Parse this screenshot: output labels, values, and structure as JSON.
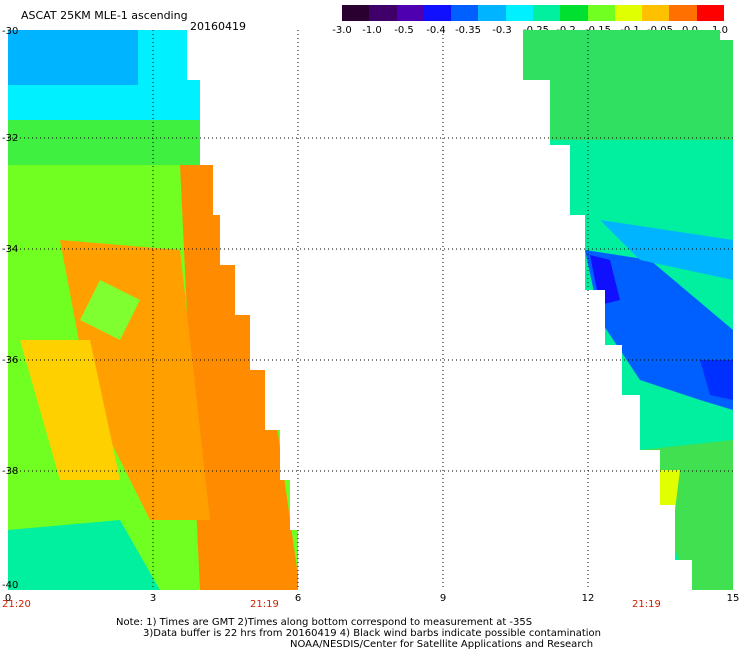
{
  "title": "ASCAT 25KM MLE-1 ascending",
  "date": "20160419",
  "colorbar": {
    "tick_labels": [
      "-3.0",
      "-1.0",
      "-0.5",
      "-0.4",
      "-0.35",
      "-0.3",
      "-0.25",
      "-0.2",
      "-0.15",
      "-0.1",
      "-0.05",
      "0.0",
      "1.0"
    ],
    "colors": [
      "#2a0030",
      "#40006a",
      "#4e00b0",
      "#1010ff",
      "#0060ff",
      "#00b4ff",
      "#00f0ff",
      "#00f0a0",
      "#00e030",
      "#70ff20",
      "#e0ff00",
      "#ffc000",
      "#ff7000",
      "#ff0000"
    ]
  },
  "axes": {
    "lat_labels": [
      "-30",
      "-32",
      "-34",
      "-36",
      "-38",
      "-40"
    ],
    "lon_labels": [
      "0",
      "3",
      "6",
      "9",
      "12",
      "15"
    ],
    "times": [
      "21:20",
      "21:19",
      "21:19"
    ]
  },
  "notes": {
    "line1": "Note: 1) Times are GMT 2)Times along bottom correspond to measurement at -35S",
    "line2": "3)Data buffer is 22 hrs from 20160419 4) Black wind barbs indicate possible contamination",
    "line3": "NOAA/NESDIS/Center for Satellite Applications and Research"
  }
}
